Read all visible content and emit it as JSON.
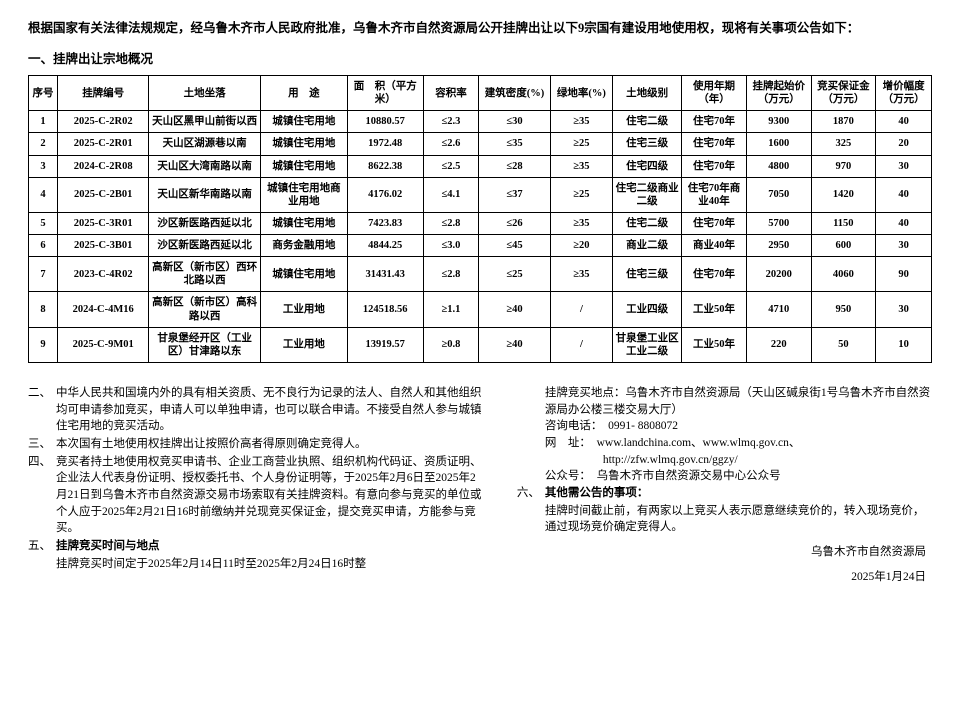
{
  "intro": "根据国家有关法律法规规定，经乌鲁木齐市人民政府批准，乌鲁木齐市自然资源局公开挂牌出让以下9宗国有建设用地使用权，现将有关事项公告如下：",
  "section1": "一、挂牌出让宗地概况",
  "headers": [
    "序号",
    "挂牌编号",
    "土地坐落",
    "用　途",
    "面　积（平方米）",
    "容积率",
    "建筑密度(%)",
    "绿地率(%)",
    "土地级别",
    "使用年期（年）",
    "挂牌起始价（万元）",
    "竞买保证金（万元）",
    "增价幅度（万元）"
  ],
  "rows": [
    [
      "1",
      "2025-C-2R02",
      "天山区黑甲山前街以西",
      "城镇住宅用地",
      "10880.57",
      "≤2.3",
      "≤30",
      "≥35",
      "住宅二级",
      "住宅70年",
      "9300",
      "1870",
      "40"
    ],
    [
      "2",
      "2025-C-2R01",
      "天山区湖源巷以南",
      "城镇住宅用地",
      "1972.48",
      "≤2.6",
      "≤35",
      "≥25",
      "住宅三级",
      "住宅70年",
      "1600",
      "325",
      "20"
    ],
    [
      "3",
      "2024-C-2R08",
      "天山区大湾南路以南",
      "城镇住宅用地",
      "8622.38",
      "≤2.5",
      "≤28",
      "≥35",
      "住宅四级",
      "住宅70年",
      "4800",
      "970",
      "30"
    ],
    [
      "4",
      "2025-C-2B01",
      "天山区新华南路以南",
      "城镇住宅用地商业用地",
      "4176.02",
      "≤4.1",
      "≤37",
      "≥25",
      "住宅二级商业二级",
      "住宅70年商业40年",
      "7050",
      "1420",
      "40"
    ],
    [
      "5",
      "2025-C-3R01",
      "沙区新医路西延以北",
      "城镇住宅用地",
      "7423.83",
      "≤2.8",
      "≤26",
      "≥35",
      "住宅二级",
      "住宅70年",
      "5700",
      "1150",
      "40"
    ],
    [
      "6",
      "2025-C-3B01",
      "沙区新医路西延以北",
      "商务金融用地",
      "4844.25",
      "≤3.0",
      "≤45",
      "≥20",
      "商业二级",
      "商业40年",
      "2950",
      "600",
      "30"
    ],
    [
      "7",
      "2023-C-4R02",
      "高新区（新市区）西环北路以西",
      "城镇住宅用地",
      "31431.43",
      "≤2.8",
      "≤25",
      "≥35",
      "住宅三级",
      "住宅70年",
      "20200",
      "4060",
      "90"
    ],
    [
      "8",
      "2024-C-4M16",
      "高新区（新市区）高科路以西",
      "工业用地",
      "124518.56",
      "≥1.1",
      "≥40",
      "/",
      "工业四级",
      "工业50年",
      "4710",
      "950",
      "30"
    ],
    [
      "9",
      "2025-C-9M01",
      "甘泉堡经开区（工业区）甘津路以东",
      "工业用地",
      "13919.57",
      "≥0.8",
      "≥40",
      "/",
      "甘泉堡工业区工业二级",
      "工业50年",
      "220",
      "50",
      "10"
    ]
  ],
  "left": {
    "c2": {
      "num": "二、",
      "body": "中华人民共和国境内外的具有相关资质、无不良行为记录的法人、自然人和其他组织均可申请参加竞买，申请人可以单独申请，也可以联合申请。不接受自然人参与城镇住宅用地的竞买活动。"
    },
    "c3": {
      "num": "三、",
      "body": "本次国有土地使用权挂牌出让按照价高者得原则确定竞得人。"
    },
    "c4": {
      "num": "四、",
      "body": "竞买者持土地使用权竞买申请书、企业工商营业执照、组织机构代码证、资质证明、企业法人代表身份证明、授权委托书、个人身份证明等，于2025年2月6日至2025年2月21日到乌鲁木齐市自然资源交易市场索取有关挂牌资料。有意向参与竞买的单位或个人应于2025年2月21日16时前缴纳并兑现竞买保证金，提交竞买申请，方能参与竞买。"
    },
    "c5": {
      "num": "五、",
      "body": "挂牌竞买时间与地点"
    },
    "c5b": "挂牌竞买时间定于2025年2月14日11时至2025年2月24日16时整"
  },
  "right": {
    "r1": "挂牌竞买地点：乌鲁木齐市自然资源局（天山区碱泉街1号乌鲁木齐市自然资源局办公楼三楼交易大厅）",
    "r2": "咨询电话：　0991- 8808072",
    "r3": "网　址：　www.landchina.com、www.wlmq.gov.cn、",
    "r3b": "http://zfw.wlmq.gov.cn/ggzy/",
    "r4": "公众号：　乌鲁木齐市自然资源交易中心公众号",
    "c6": {
      "num": "六、",
      "body": "其他需公告的事项："
    },
    "c6b": "挂牌时间截止前，有两家以上竞买人表示愿意继续竞价的，转入现场竞价，通过现场竞价确定竞得人。"
  },
  "sign1": "乌鲁木齐市自然资源局",
  "sign2": "2025年1月24日"
}
